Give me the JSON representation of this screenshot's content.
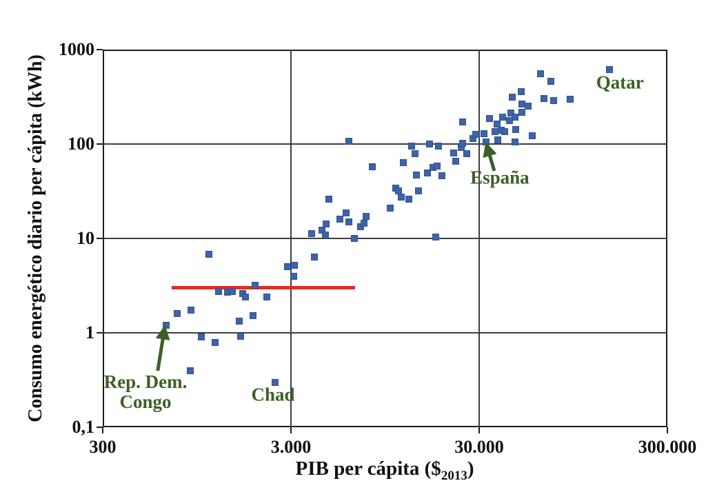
{
  "chart_data": {
    "type": "scatter",
    "title": "",
    "ylabel": "Consumo energético diario per cápita (kWh)",
    "xlabel_main": "PIB per cápita ($",
    "xlabel_sub": "2013",
    "xlabel_end": ")",
    "x_axis": {
      "scale": "log",
      "min": 300,
      "max": 300000,
      "ticks": [
        {
          "value": 300,
          "label": "300"
        },
        {
          "value": 3000,
          "label": "3.000"
        },
        {
          "value": 30000,
          "label": "30.000"
        },
        {
          "value": 300000,
          "label": "300.000"
        }
      ]
    },
    "y_axis": {
      "scale": "log",
      "min": 0.1,
      "max": 1000,
      "ticks": [
        {
          "value": 1000,
          "label": "1000"
        },
        {
          "value": 100,
          "label": "100"
        },
        {
          "value": 10,
          "label": "10"
        },
        {
          "value": 1,
          "label": "1"
        },
        {
          "value": 0.1,
          "label": "0,1"
        }
      ]
    },
    "grid": true,
    "legend": "none",
    "series": [
      {
        "name": "countries",
        "marker": "square",
        "color": "#3e63a9",
        "points": [
          [
            650,
            1.2
          ],
          [
            744,
            1.6
          ],
          [
            880,
            1.75
          ],
          [
            875,
            0.4
          ],
          [
            1000,
            0.91
          ],
          [
            1190,
            0.79
          ],
          [
            1100,
            6.8
          ],
          [
            1240,
            2.75
          ],
          [
            1380,
            2.7
          ],
          [
            1470,
            2.75
          ],
          [
            1660,
            2.6
          ],
          [
            1720,
            2.4
          ],
          [
            1930,
            3.2
          ],
          [
            2230,
            2.4
          ],
          [
            1600,
            1.34
          ],
          [
            1890,
            1.53
          ],
          [
            1620,
            0.92
          ],
          [
            2470,
            0.3
          ],
          [
            2870,
            5.0
          ],
          [
            3130,
            5.2
          ],
          [
            3100,
            4.0
          ],
          [
            4000,
            6.4
          ],
          [
            3870,
            11.3
          ],
          [
            4400,
            12.2
          ],
          [
            4630,
            14.2
          ],
          [
            4560,
            10.9
          ],
          [
            4770,
            26
          ],
          [
            5450,
            16
          ],
          [
            5870,
            18.6
          ],
          [
            6070,
            15
          ],
          [
            6540,
            10
          ],
          [
            7050,
            13.3
          ],
          [
            7350,
            14.4
          ],
          [
            7550,
            17.2
          ],
          [
            8100,
            57
          ],
          [
            6100,
            107
          ],
          [
            10100,
            20.8
          ],
          [
            10800,
            34
          ],
          [
            11200,
            32
          ],
          [
            11600,
            27.6
          ],
          [
            12700,
            26.2
          ],
          [
            14300,
            32
          ],
          [
            11900,
            63
          ],
          [
            13100,
            95
          ],
          [
            13700,
            79
          ],
          [
            13900,
            47
          ],
          [
            15900,
            49
          ],
          [
            17000,
            56
          ],
          [
            18000,
            58
          ],
          [
            19000,
            46
          ],
          [
            17700,
            10.3
          ],
          [
            16400,
            100
          ],
          [
            18200,
            95
          ],
          [
            21900,
            81
          ],
          [
            22500,
            66
          ],
          [
            24000,
            92
          ],
          [
            25700,
            79
          ],
          [
            24400,
            171
          ],
          [
            27800,
            114
          ],
          [
            28700,
            127
          ],
          [
            24600,
            101
          ],
          [
            32700,
            105
          ],
          [
            34000,
            186
          ],
          [
            36500,
            136
          ],
          [
            39300,
            140
          ],
          [
            40900,
            136
          ],
          [
            46900,
            143
          ],
          [
            37800,
            110
          ],
          [
            46500,
            105
          ],
          [
            37500,
            163
          ],
          [
            39900,
            194
          ],
          [
            44400,
            213
          ],
          [
            46500,
            194
          ],
          [
            50400,
            217
          ],
          [
            43600,
            176
          ],
          [
            31800,
            129
          ],
          [
            50800,
            265
          ],
          [
            54800,
            252
          ],
          [
            44800,
            311
          ],
          [
            50000,
            361
          ],
          [
            57500,
            122
          ],
          [
            63700,
            555
          ],
          [
            72300,
            461
          ],
          [
            66400,
            305
          ],
          [
            74800,
            290
          ],
          [
            91600,
            300
          ],
          [
            148000,
            610
          ]
        ]
      }
    ],
    "reference_line": {
      "y": 3,
      "x_start": 700,
      "x_end": 6600,
      "color": "#f0251c"
    },
    "annotations": [
      {
        "lines": [
          "Qatar"
        ],
        "text_at": [
          168000,
          450
        ],
        "point": [
          148000,
          610
        ],
        "arrow": null
      },
      {
        "lines": [
          "España"
        ],
        "text_at": [
          38600,
          44
        ],
        "point": [
          32700,
          105
        ],
        "arrow": {
          "from": [
            36100,
            52
          ],
          "to": [
            33000,
            95
          ]
        }
      },
      {
        "lines": [
          "Rep. Dem.",
          "Congo"
        ],
        "text_at": [
          506,
          0.235
        ],
        "point": [
          650,
          1.2
        ],
        "arrow": {
          "from": [
            588,
            0.397
          ],
          "to": [
            638,
            1.09
          ]
        }
      },
      {
        "lines": [
          "Chad"
        ],
        "text_at": [
          2410,
          0.22
        ],
        "point": [
          2470,
          0.3
        ],
        "arrow": null
      }
    ],
    "colors": {
      "marker": "#3e63a9",
      "marker_border": "#2e5290",
      "annotation_green": "#3c5f27",
      "red_line": "#f0251c",
      "axis_black": "#1a1a1a",
      "grid_gray": "#3d3d3d"
    }
  }
}
